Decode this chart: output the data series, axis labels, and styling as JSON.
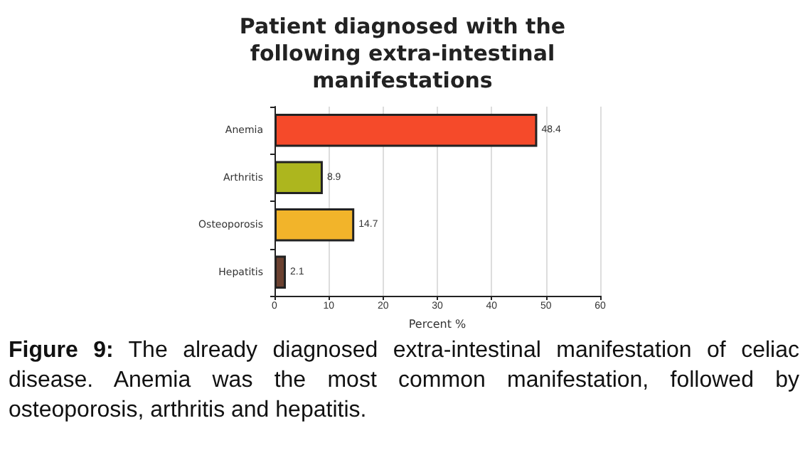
{
  "chart_data": {
    "type": "bar",
    "orientation": "horizontal",
    "title": "Patient diagnosed with the\nfollowing extra-intestinal\nmanifestations",
    "xlabel": "Percent %",
    "categories": [
      "Anemia",
      "Arthritis",
      "Osteoporosis",
      "Hepatitis"
    ],
    "values": [
      48.4,
      8.9,
      14.7,
      2.1
    ],
    "colors": [
      "#f54a2a",
      "#adb61e",
      "#f2b42a",
      "#6b4130"
    ],
    "data_labels": true,
    "xlim": [
      0,
      60
    ],
    "xticks": [
      0,
      10,
      20,
      30,
      40,
      50,
      60
    ],
    "grid": "x",
    "annotations": [
      "Figure 9: The already diagnosed extra-intestinal manifestation of celiac disease. Anemia was the most common manifestation, followed by osteoporosis, arthritis and hepatitis."
    ]
  }
}
